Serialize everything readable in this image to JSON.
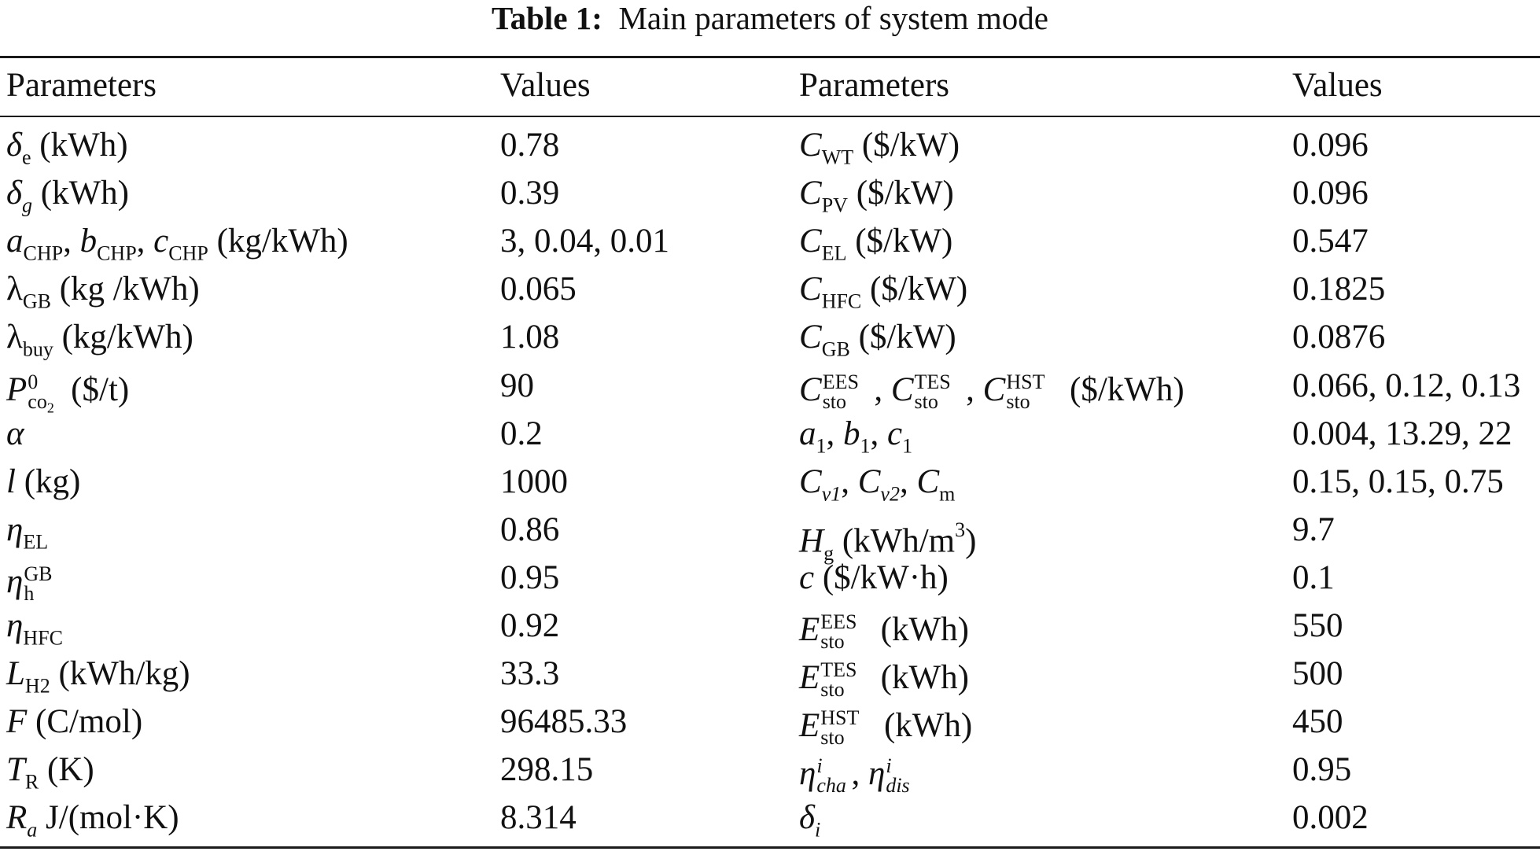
{
  "caption": {
    "label": "Table 1:",
    "text": "Main parameters of system mode"
  },
  "header": {
    "param": "Parameters",
    "value": "Values"
  },
  "left_values": [
    "0.78",
    "0.39",
    "3, 0.04, 0.01",
    "0.065",
    "1.08",
    "90",
    "0.2",
    "1000",
    "0.86",
    "0.95",
    "0.92",
    "33.3",
    "96485.33",
    "298.15",
    "8.314"
  ],
  "right_values": [
    "0.096",
    "0.096",
    "0.547",
    "0.1825",
    "0.0876",
    "0.066, 0.12, 0.13",
    "0.004, 13.29, 22",
    "0.15, 0.15, 0.75",
    "9.7",
    "0.1",
    "550",
    "500",
    "450",
    "0.95",
    "0.002"
  ],
  "units": {
    "kwh": "(kWh)",
    "kg_kwh": "(kg/kWh)",
    "kg_sp_kwh": "(kg /kWh)",
    "usd_t": "($/t)",
    "kg": "(kg)",
    "kwh_kg": "(kWh/kg)",
    "c_mol": "(C/mol)",
    "k": "(K)",
    "j_molk": "J/(mol·K)",
    "usd_kw": "($/kW)",
    "usd_kwh": "($/kWh)",
    "kwh_m3": "(kWh/m",
    "close": ")",
    "usd_kw_h": "($/kW·h)"
  },
  "symbols": {
    "delta": "δ",
    "a": "a",
    "b": "b",
    "c": "c",
    "lambda": "λ",
    "P": "P",
    "alpha": "α",
    "l": "l",
    "eta": "η",
    "L": "L",
    "F": "F",
    "T": "T",
    "R": "R",
    "C": "C",
    "H": "H",
    "E": "E",
    "comma": ","
  },
  "sub": {
    "e": "e",
    "g": "g",
    "chp": "CHP",
    "gb": "GB",
    "buy": "buy",
    "co": "co",
    "two": "2",
    "el": "EL",
    "h": "h",
    "hfc": "HFC",
    "h2": "H2",
    "R": "R",
    "a": "a",
    "wt": "WT",
    "pv": "PV",
    "sto": "sto",
    "one": "1",
    "v1": "v1",
    "v2": "v2",
    "m": "m",
    "cha": "cha",
    "dis": "dis",
    "i": "i"
  },
  "sup": {
    "zero": "0",
    "gb": "GB",
    "ees": "EES",
    "tes": "TES",
    "hst": "HST",
    "three": "3",
    "i": "i"
  }
}
